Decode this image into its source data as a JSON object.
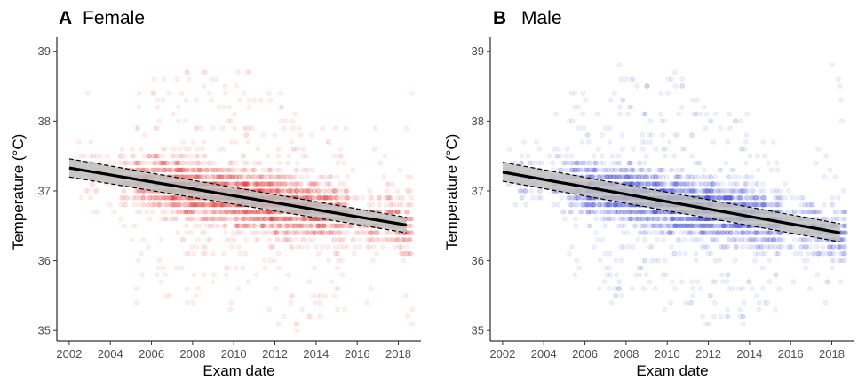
{
  "chart_data": [
    {
      "type": "scatter",
      "panel_letter": "A",
      "title": "Female",
      "xlabel": "Exam date",
      "ylabel": "Temperature (°C)",
      "xlim": [
        2001.4,
        2019.1
      ],
      "ylim": [
        34.85,
        39.2
      ],
      "x_ticks": [
        2002,
        2004,
        2006,
        2008,
        2010,
        2012,
        2014,
        2016,
        2018
      ],
      "x_tick_labels": [
        "2002",
        "2004",
        "2006",
        "2008",
        "2010",
        "2012",
        "2014",
        "2016",
        "2018"
      ],
      "y_ticks": [
        35,
        36,
        37,
        38,
        39
      ],
      "y_tick_labels": [
        "35",
        "36",
        "37",
        "38",
        "39"
      ],
      "grid": false,
      "point_color": "#e8211c",
      "point_alpha": 0.07,
      "density_profile": [
        {
          "x": 2002.6,
          "y_range": [
            36.4,
            38.4
          ],
          "count": 10
        },
        {
          "x": 2003.2,
          "y_range": [
            36.0,
            38.6
          ],
          "count": 25
        },
        {
          "x": 2004.0,
          "y_range": [
            36.3,
            37.8
          ],
          "count": 15
        },
        {
          "x": 2004.8,
          "y_range": [
            36.2,
            38.4
          ],
          "count": 60
        },
        {
          "x": 2005.6,
          "y_range": [
            35.4,
            38.6
          ],
          "count": 130
        },
        {
          "x": 2006.4,
          "y_range": [
            35.5,
            38.7
          ],
          "count": 180
        },
        {
          "x": 2007.2,
          "y_range": [
            35.3,
            38.7
          ],
          "count": 230
        },
        {
          "x": 2008.0,
          "y_range": [
            35.3,
            38.8
          ],
          "count": 260
        },
        {
          "x": 2008.8,
          "y_range": [
            35.4,
            38.8
          ],
          "count": 260
        },
        {
          "x": 2009.6,
          "y_range": [
            35.2,
            38.9
          ],
          "count": 240
        },
        {
          "x": 2010.4,
          "y_range": [
            35.2,
            38.8
          ],
          "count": 290
        },
        {
          "x": 2011.2,
          "y_range": [
            35.3,
            38.5
          ],
          "count": 240
        },
        {
          "x": 2012.0,
          "y_range": [
            35.0,
            38.4
          ],
          "count": 270
        },
        {
          "x": 2012.8,
          "y_range": [
            35.0,
            38.2
          ],
          "count": 240
        },
        {
          "x": 2013.6,
          "y_range": [
            35.1,
            38.2
          ],
          "count": 220
        },
        {
          "x": 2014.4,
          "y_range": [
            35.2,
            38.1
          ],
          "count": 200
        },
        {
          "x": 2015.2,
          "y_range": [
            35.3,
            38.0
          ],
          "count": 160
        },
        {
          "x": 2016.0,
          "y_range": [
            35.6,
            37.6
          ],
          "count": 40
        },
        {
          "x": 2016.8,
          "y_range": [
            35.4,
            38.0
          ],
          "count": 90
        },
        {
          "x": 2017.6,
          "y_range": [
            35.6,
            37.8
          ],
          "count": 70
        },
        {
          "x": 2018.3,
          "y_range": [
            35.1,
            38.8
          ],
          "count": 120
        }
      ],
      "trend": {
        "x": [
          2002.0,
          2018.4
        ],
        "y": [
          37.33,
          36.51
        ]
      },
      "confidence_band": {
        "x": [
          2002.0,
          2018.4
        ],
        "lower": [
          37.2,
          36.4
        ],
        "upper": [
          37.46,
          36.62
        ]
      },
      "trend_color": "#000000",
      "band_color": "#bdbdbd"
    },
    {
      "type": "scatter",
      "panel_letter": "B",
      "title": "Male",
      "xlabel": "Exam date",
      "ylabel": "Temperature (°C)",
      "xlim": [
        2001.4,
        2019.1
      ],
      "ylim": [
        34.85,
        39.2
      ],
      "x_ticks": [
        2002,
        2004,
        2006,
        2008,
        2010,
        2012,
        2014,
        2016,
        2018
      ],
      "x_tick_labels": [
        "2002",
        "2004",
        "2006",
        "2008",
        "2010",
        "2012",
        "2014",
        "2016",
        "2018"
      ],
      "y_ticks": [
        35,
        36,
        37,
        38,
        39
      ],
      "y_tick_labels": [
        "35",
        "36",
        "37",
        "38",
        "39"
      ],
      "grid": false,
      "point_color": "#1f2fd6",
      "point_alpha": 0.07,
      "density_profile": [
        {
          "x": 2002.6,
          "y_range": [
            36.5,
            38.2
          ],
          "count": 10
        },
        {
          "x": 2003.2,
          "y_range": [
            36.2,
            39.0
          ],
          "count": 25
        },
        {
          "x": 2004.0,
          "y_range": [
            36.2,
            37.8
          ],
          "count": 15
        },
        {
          "x": 2004.8,
          "y_range": [
            36.2,
            38.3
          ],
          "count": 60
        },
        {
          "x": 2005.6,
          "y_range": [
            35.6,
            38.4
          ],
          "count": 130
        },
        {
          "x": 2006.4,
          "y_range": [
            35.4,
            38.3
          ],
          "count": 180
        },
        {
          "x": 2007.2,
          "y_range": [
            35.4,
            38.4
          ],
          "count": 230
        },
        {
          "x": 2008.0,
          "y_range": [
            35.5,
            38.8
          ],
          "count": 260
        },
        {
          "x": 2008.8,
          "y_range": [
            35.4,
            38.6
          ],
          "count": 260
        },
        {
          "x": 2009.6,
          "y_range": [
            35.3,
            38.6
          ],
          "count": 240
        },
        {
          "x": 2010.4,
          "y_range": [
            35.3,
            38.8
          ],
          "count": 290
        },
        {
          "x": 2011.2,
          "y_range": [
            35.3,
            38.3
          ],
          "count": 240
        },
        {
          "x": 2012.0,
          "y_range": [
            35.0,
            38.4
          ],
          "count": 270
        },
        {
          "x": 2012.8,
          "y_range": [
            35.1,
            38.2
          ],
          "count": 240
        },
        {
          "x": 2013.6,
          "y_range": [
            35.1,
            38.1
          ],
          "count": 220
        },
        {
          "x": 2014.4,
          "y_range": [
            35.2,
            38.0
          ],
          "count": 200
        },
        {
          "x": 2015.2,
          "y_range": [
            35.2,
            37.8
          ],
          "count": 160
        },
        {
          "x": 2016.0,
          "y_range": [
            35.6,
            37.4
          ],
          "count": 40
        },
        {
          "x": 2016.8,
          "y_range": [
            35.5,
            37.6
          ],
          "count": 90
        },
        {
          "x": 2017.6,
          "y_range": [
            35.3,
            37.6
          ],
          "count": 70
        },
        {
          "x": 2018.3,
          "y_range": [
            35.0,
            39.0
          ],
          "count": 120
        }
      ],
      "trend": {
        "x": [
          2002.0,
          2018.4
        ],
        "y": [
          37.27,
          36.4
        ]
      },
      "confidence_band": {
        "x": [
          2002.0,
          2018.4
        ],
        "lower": [
          37.14,
          36.27
        ],
        "upper": [
          37.41,
          36.53
        ]
      },
      "trend_color": "#000000",
      "band_color": "#bdbdbd"
    }
  ]
}
